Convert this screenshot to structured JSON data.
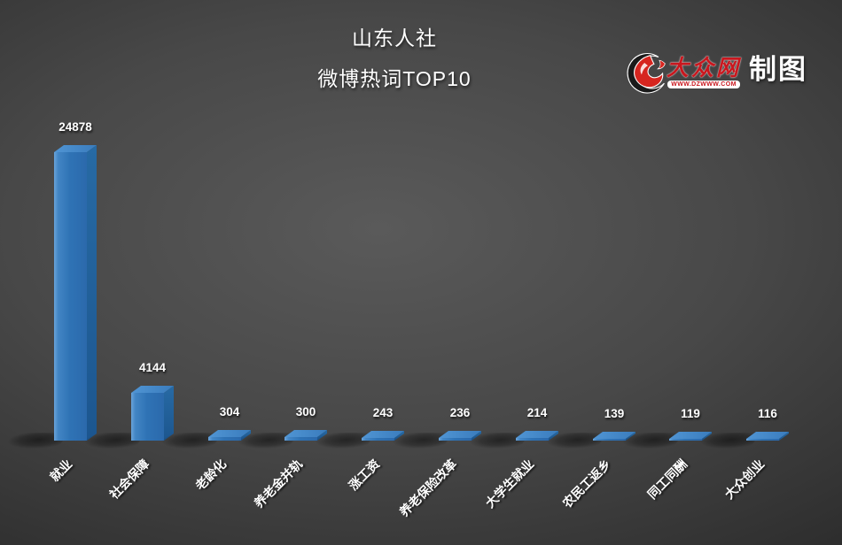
{
  "title": {
    "line1": "山东人社",
    "line2": "微博热词TOP10"
  },
  "logo": {
    "brand": "大众网",
    "url": "WWW.DZWWW.COM",
    "suffix": "制图",
    "brand_color": "#c9171e"
  },
  "chart_data": {
    "type": "bar",
    "style": "3d-column",
    "orientation": "vertical",
    "title": "山东人社",
    "subtitle": "微博热词TOP10",
    "categories": [
      "就业",
      "社会保障",
      "老龄化",
      "养老金并轨",
      "涨工资",
      "养老保险改革",
      "大学生就业",
      "农民工返乡",
      "同工同酬",
      "大众创业"
    ],
    "values": [
      24878,
      4144,
      304,
      300,
      243,
      236,
      214,
      139,
      119,
      116
    ],
    "value_labels_visible": true,
    "category_label_rotation_deg": -45,
    "bar_color": "#2f73b5",
    "bar_top_color": "#4389c9",
    "bar_side_color": "#1c568f",
    "label_color": "#ffffff",
    "background": "dark gray radial gradient #575757 to #242424",
    "xlabel": "",
    "ylabel": "",
    "ylim": [
      0,
      24878
    ],
    "grid": "off",
    "axes_visible": false,
    "legend": "none"
  }
}
